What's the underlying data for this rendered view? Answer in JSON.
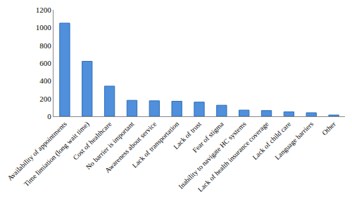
{
  "chart_data": {
    "type": "bar",
    "categories": [
      "Availability of appointments",
      "Time limiation (long wait time)",
      "Cost of healthcare",
      "No barrier is important",
      "Awareness about service",
      "Lack of transportation",
      "Lack of trust",
      "Fear of stigma",
      "Inability to navigate HC systems",
      "Lack of health insurance coverage",
      "Lack of child care",
      "Language barriers",
      "Other"
    ],
    "values": [
      1050,
      620,
      340,
      180,
      175,
      170,
      160,
      125,
      70,
      65,
      50,
      40,
      15
    ],
    "color": "#4f8fdc",
    "ylim": [
      0,
      1200
    ],
    "yticks": [
      0,
      200,
      400,
      600,
      800,
      1000,
      1200
    ],
    "grid": false
  }
}
